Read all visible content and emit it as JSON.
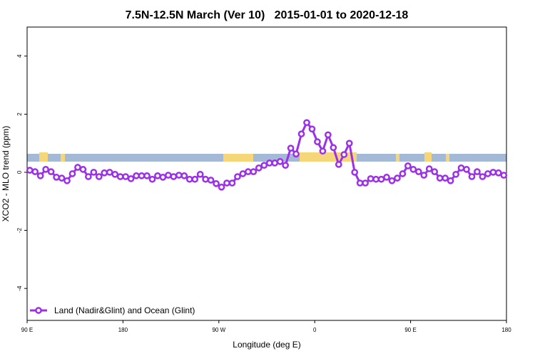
{
  "chart_data": {
    "type": "line",
    "title": "7.5N-12.5N March (Ver 10)   2015-01-01 to 2020-12-18",
    "x_label": "Longitude (deg E)",
    "y_label": "XCO2 - MLO trend (ppm)",
    "xlim": [
      90,
      540
    ],
    "ylim": [
      -5.1,
      5
    ],
    "xticks": [
      {
        "value": 90,
        "label": "90 E"
      },
      180,
      {
        "value": 270,
        "label": "90 W"
      },
      {
        "value": 360,
        "label": "0"
      },
      {
        "value": 450,
        "label": "90 E"
      },
      {
        "value": 540,
        "label": "180"
      }
    ],
    "yticks": [
      -4,
      -2,
      0,
      2,
      4
    ],
    "legend": "bottom-left",
    "x": [
      92.5,
      97.5,
      102.5,
      107.5,
      112.5,
      117.5,
      122.5,
      127.5,
      132.5,
      137.5,
      142.5,
      147.5,
      152.5,
      157.5,
      162.5,
      167.5,
      172.5,
      177.5,
      182.5,
      187.5,
      192.5,
      197.5,
      202.5,
      207.5,
      212.5,
      217.5,
      222.5,
      227.5,
      232.5,
      237.5,
      242.5,
      247.5,
      252.5,
      257.5,
      262.5,
      267.5,
      272.5,
      277.5,
      282.5,
      287.5,
      292.5,
      297.5,
      302.5,
      307.5,
      312.5,
      317.5,
      322.5,
      327.5,
      332.5,
      337.5,
      342.5,
      347.5,
      352.5,
      357.5,
      362.5,
      367.5,
      372.5,
      377.5,
      382.5,
      387.5,
      392.5,
      397.5,
      402.5,
      407.5,
      412.5,
      417.5,
      422.5,
      427.5,
      432.5,
      437.5,
      442.5,
      447.5,
      452.5,
      457.5,
      462.5,
      467.5,
      472.5,
      477.5,
      482.5,
      487.5,
      492.5,
      497.5,
      502.5,
      507.5,
      512.5,
      517.5,
      522.5,
      527.5,
      532.5,
      537.5
    ],
    "series": [
      {
        "name": "Land (Nadir&Glint) and Ocean (Glint)",
        "color": "#9b30e8",
        "values": [
          0.07,
          0.02,
          -0.12,
          0.1,
          0.02,
          -0.17,
          -0.2,
          -0.29,
          -0.05,
          0.17,
          0.1,
          -0.15,
          0,
          -0.15,
          -0.02,
          0,
          -0.07,
          -0.15,
          -0.15,
          -0.22,
          -0.12,
          -0.12,
          -0.12,
          -0.24,
          -0.12,
          -0.17,
          -0.1,
          -0.15,
          -0.1,
          -0.12,
          -0.24,
          -0.24,
          -0.07,
          -0.24,
          -0.27,
          -0.39,
          -0.51,
          -0.37,
          -0.37,
          -0.15,
          -0.05,
          0.02,
          0.02,
          0.15,
          0.24,
          0.32,
          0.32,
          0.37,
          0.24,
          0.83,
          0.63,
          1.32,
          1.71,
          1.49,
          1.05,
          0.73,
          1.29,
          0.85,
          0.27,
          0.61,
          1.0,
          0,
          -0.37,
          -0.37,
          -0.22,
          -0.24,
          -0.24,
          -0.17,
          -0.29,
          -0.2,
          -0.05,
          0.22,
          0.1,
          0.02,
          -0.1,
          0.12,
          0.02,
          -0.2,
          -0.2,
          -0.29,
          -0.07,
          0.15,
          0.1,
          -0.15,
          0.02,
          -0.15,
          -0.05,
          0,
          -0.02,
          -0.1
        ]
      }
    ]
  }
}
